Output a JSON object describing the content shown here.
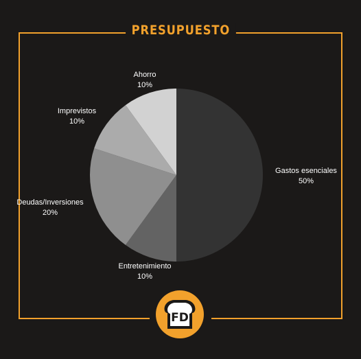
{
  "title": "PRESUPUESTO",
  "logo": {
    "text": "FD",
    "icon": "bread-slice-icon"
  },
  "colors": {
    "accent": "#f2a12c",
    "background": "#1b1918",
    "label": "#ffffff"
  },
  "chart_data": {
    "type": "pie",
    "title": "",
    "slices": [
      {
        "label": "Gastos  esenciales",
        "value": 50,
        "display": "50%",
        "color": "#333333"
      },
      {
        "label": "Entretenimiento",
        "value": 10,
        "display": "10%",
        "color": "#636363"
      },
      {
        "label": "Deudas/Inversiones",
        "value": 20,
        "display": "20%",
        "color": "#8f8f8f"
      },
      {
        "label": "Imprevistos",
        "value": 10,
        "display": "10%",
        "color": "#ababab"
      },
      {
        "label": "Ahorro",
        "value": 10,
        "display": "10%",
        "color": "#d2d2d2"
      }
    ]
  }
}
